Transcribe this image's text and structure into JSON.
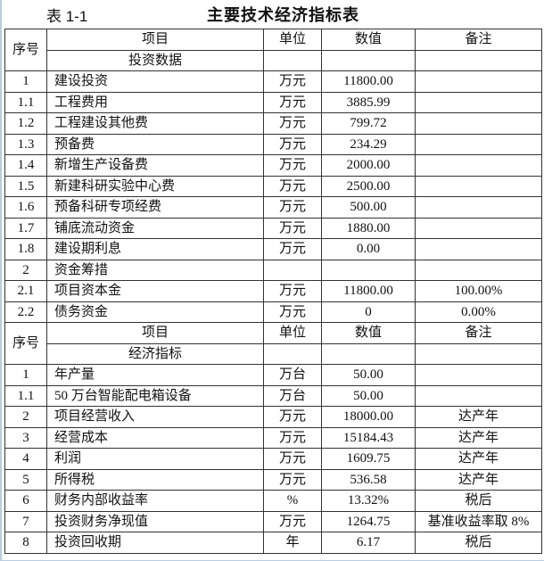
{
  "caption": {
    "label": "表 1-1",
    "title": "主要技术经济指标表"
  },
  "headers": {
    "seq": "序号",
    "item": "项目",
    "unit": "单位",
    "value": "数值",
    "note": "备注"
  },
  "sections": [
    {
      "name": "投资数据",
      "rows": [
        {
          "seq": "1",
          "item": "建设投资",
          "unit": "万元",
          "value": "11800.00",
          "note": ""
        },
        {
          "seq": "1.1",
          "item": "工程费用",
          "unit": "万元",
          "value": "3885.99",
          "note": ""
        },
        {
          "seq": "1.2",
          "item": "工程建设其他费",
          "unit": "万元",
          "value": "799.72",
          "note": ""
        },
        {
          "seq": "1.3",
          "item": "预备费",
          "unit": "万元",
          "value": "234.29",
          "note": ""
        },
        {
          "seq": "1.4",
          "item": "新增生产设备费",
          "unit": "万元",
          "value": "2000.00",
          "note": ""
        },
        {
          "seq": "1.5",
          "item": "新建科研实验中心费",
          "unit": "万元",
          "value": "2500.00",
          "note": ""
        },
        {
          "seq": "1.6",
          "item": "预备科研专项经费",
          "unit": "万元",
          "value": "500.00",
          "note": ""
        },
        {
          "seq": "1.7",
          "item": "铺底流动资金",
          "unit": "万元",
          "value": "1880.00",
          "note": ""
        },
        {
          "seq": "1.8",
          "item": "建设期利息",
          "unit": "万元",
          "value": "0.00",
          "note": ""
        },
        {
          "seq": "2",
          "item": "资金筹措",
          "unit": "",
          "value": "",
          "note": ""
        },
        {
          "seq": "2.1",
          "item": "项目资本金",
          "unit": "万元",
          "value": "11800.00",
          "note": "100.00%"
        },
        {
          "seq": "2.2",
          "item": "债务资金",
          "unit": "万元",
          "value": "0",
          "note": "0.00%"
        }
      ]
    },
    {
      "name": "经济指标",
      "rows": [
        {
          "seq": "1",
          "item": "年产量",
          "unit": "万台",
          "value": "50.00",
          "note": ""
        },
        {
          "seq": "1.1",
          "item": "50 万台智能配电箱设备",
          "unit": "万台",
          "value": "50.00",
          "note": ""
        },
        {
          "seq": "2",
          "item": "项目经营收入",
          "unit": "万元",
          "value": "18000.00",
          "note": "达产年"
        },
        {
          "seq": "3",
          "item": "经营成本",
          "unit": "万元",
          "value": "15184.43",
          "note": "达产年"
        },
        {
          "seq": "4",
          "item": "利润",
          "unit": "万元",
          "value": "1609.75",
          "note": "达产年"
        },
        {
          "seq": "5",
          "item": "所得税",
          "unit": "万元",
          "value": "536.58",
          "note": "达产年"
        },
        {
          "seq": "6",
          "item": "财务内部收益率",
          "unit": "%",
          "value": "13.32%",
          "note": "税后"
        },
        {
          "seq": "7",
          "item": "投资财务净现值",
          "unit": "万元",
          "value": "1264.75",
          "note": "基准收益率取 8%"
        },
        {
          "seq": "8",
          "item": "投资回收期",
          "unit": "年",
          "value": "6.17",
          "note": "税后"
        }
      ]
    }
  ]
}
